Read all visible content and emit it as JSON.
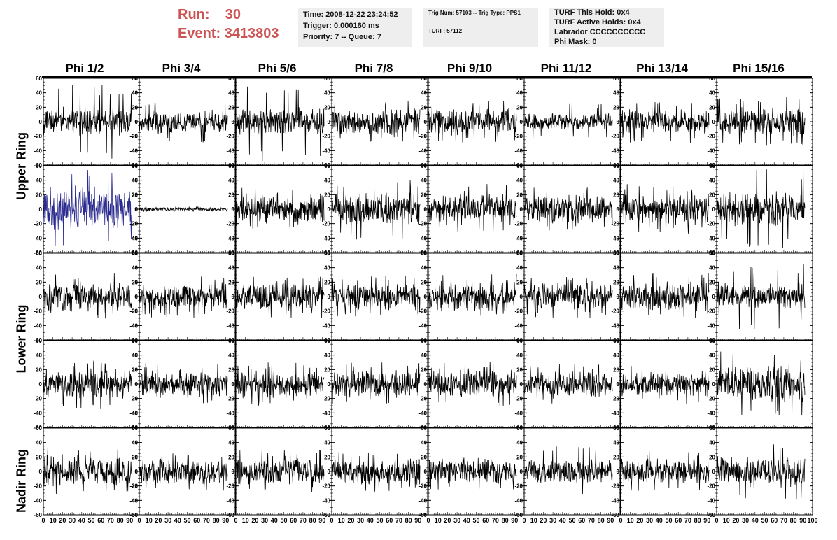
{
  "header": {
    "run_label": "Run:",
    "run_value": "30",
    "event_label": "Event:",
    "event_value": "3413803"
  },
  "time_box": {
    "time": "Time: 2008-12-22 23:24:52",
    "trigger": "Trigger: 0.000160 ms",
    "priority": "Priority: 7 -- Queue: 7"
  },
  "trig_box": {
    "trig": "Trig Num: 57103 -- Trig Type: PPS1",
    "turf": "TURF: 57112"
  },
  "turf_box": {
    "this_hold": "TURF This Hold: 0x4",
    "active_holds": "TURF Active Holds: 0x4",
    "labrador": "Labrador CCCCCCCCCC",
    "phi_mask": "Phi Mask: 0"
  },
  "columns": [
    "Phi 1/2",
    "Phi 3/4",
    "Phi 5/6",
    "Phi 7/8",
    "Phi 9/10",
    "Phi 11/12",
    "Phi 13/14",
    "Phi 15/16"
  ],
  "rings": [
    "Upper Ring",
    "Lower Ring",
    "Nadir Ring"
  ],
  "colors": {
    "trace": "#000000",
    "highlight_trace": "#2a2a8f",
    "title_red": "#cc5454",
    "box_bg": "#eeeeee"
  },
  "chart_data": {
    "type": "line",
    "description_rows": 5,
    "description_cols": 8,
    "xlim": [
      0,
      100
    ],
    "ylim": [
      -60,
      60
    ],
    "yticks": [
      -60,
      -40,
      -20,
      0,
      20,
      40,
      60
    ],
    "xticks": [
      0,
      10,
      20,
      30,
      40,
      50,
      60,
      70,
      80,
      90,
      100
    ],
    "xtick_labels": [
      "0",
      "10",
      "20",
      "30",
      "40",
      "50",
      "60",
      "70",
      "80",
      "90",
      "100"
    ],
    "ytick_labels": [
      "-60",
      "-40",
      "-20",
      "0",
      "20",
      "40",
      "60"
    ],
    "panels": [
      {
        "row": 0,
        "col": 0,
        "amplitude": 14,
        "max_spike": 52,
        "seed": 11
      },
      {
        "row": 0,
        "col": 1,
        "amplitude": 11,
        "max_spike": 30,
        "seed": 12
      },
      {
        "row": 0,
        "col": 2,
        "amplitude": 13,
        "max_spike": 55,
        "seed": 13
      },
      {
        "row": 0,
        "col": 3,
        "amplitude": 12,
        "max_spike": 30,
        "seed": 14
      },
      {
        "row": 0,
        "col": 4,
        "amplitude": 13,
        "max_spike": 30,
        "seed": 15
      },
      {
        "row": 0,
        "col": 5,
        "amplitude": 8,
        "max_spike": 26,
        "seed": 16
      },
      {
        "row": 0,
        "col": 6,
        "amplitude": 12,
        "max_spike": 30,
        "seed": 17
      },
      {
        "row": 0,
        "col": 7,
        "amplitude": 13,
        "max_spike": 35,
        "seed": 18
      },
      {
        "row": 1,
        "col": 0,
        "amplitude": 22,
        "max_spike": 58,
        "seed": 21,
        "highlight": true
      },
      {
        "row": 1,
        "col": 1,
        "amplitude": 2,
        "max_spike": 4,
        "seed": 22
      },
      {
        "row": 1,
        "col": 2,
        "amplitude": 13,
        "max_spike": 30,
        "seed": 23
      },
      {
        "row": 1,
        "col": 3,
        "amplitude": 15,
        "max_spike": 42,
        "seed": 24
      },
      {
        "row": 1,
        "col": 4,
        "amplitude": 15,
        "max_spike": 35,
        "seed": 25
      },
      {
        "row": 1,
        "col": 5,
        "amplitude": 14,
        "max_spike": 32,
        "seed": 26
      },
      {
        "row": 1,
        "col": 6,
        "amplitude": 15,
        "max_spike": 35,
        "seed": 27
      },
      {
        "row": 1,
        "col": 7,
        "amplitude": 16,
        "max_spike": 55,
        "seed": 28
      },
      {
        "row": 2,
        "col": 0,
        "amplitude": 14,
        "max_spike": 32,
        "seed": 31
      },
      {
        "row": 2,
        "col": 1,
        "amplitude": 13,
        "max_spike": 30,
        "seed": 32
      },
      {
        "row": 2,
        "col": 2,
        "amplitude": 13,
        "max_spike": 30,
        "seed": 33
      },
      {
        "row": 2,
        "col": 3,
        "amplitude": 13,
        "max_spike": 30,
        "seed": 34
      },
      {
        "row": 2,
        "col": 4,
        "amplitude": 14,
        "max_spike": 32,
        "seed": 35
      },
      {
        "row": 2,
        "col": 5,
        "amplitude": 13,
        "max_spike": 30,
        "seed": 36
      },
      {
        "row": 2,
        "col": 6,
        "amplitude": 14,
        "max_spike": 32,
        "seed": 37
      },
      {
        "row": 2,
        "col": 7,
        "amplitude": 13,
        "max_spike": 45,
        "seed": 38
      },
      {
        "row": 3,
        "col": 0,
        "amplitude": 14,
        "max_spike": 35,
        "seed": 41
      },
      {
        "row": 3,
        "col": 1,
        "amplitude": 13,
        "max_spike": 30,
        "seed": 42
      },
      {
        "row": 3,
        "col": 2,
        "amplitude": 13,
        "max_spike": 30,
        "seed": 43
      },
      {
        "row": 3,
        "col": 3,
        "amplitude": 13,
        "max_spike": 30,
        "seed": 44
      },
      {
        "row": 3,
        "col": 4,
        "amplitude": 14,
        "max_spike": 32,
        "seed": 45
      },
      {
        "row": 3,
        "col": 5,
        "amplitude": 12,
        "max_spike": 28,
        "seed": 46
      },
      {
        "row": 3,
        "col": 6,
        "amplitude": 12,
        "max_spike": 28,
        "seed": 47
      },
      {
        "row": 3,
        "col": 7,
        "amplitude": 17,
        "max_spike": 45,
        "seed": 48
      },
      {
        "row": 4,
        "col": 0,
        "amplitude": 14,
        "max_spike": 32,
        "seed": 51
      },
      {
        "row": 4,
        "col": 1,
        "amplitude": 12,
        "max_spike": 28,
        "seed": 52
      },
      {
        "row": 4,
        "col": 2,
        "amplitude": 13,
        "max_spike": 30,
        "seed": 53
      },
      {
        "row": 4,
        "col": 3,
        "amplitude": 12,
        "max_spike": 28,
        "seed": 54
      },
      {
        "row": 4,
        "col": 4,
        "amplitude": 12,
        "max_spike": 28,
        "seed": 55
      },
      {
        "row": 4,
        "col": 5,
        "amplitude": 11,
        "max_spike": 36,
        "seed": 56
      },
      {
        "row": 4,
        "col": 6,
        "amplitude": 12,
        "max_spike": 28,
        "seed": 57
      },
      {
        "row": 4,
        "col": 7,
        "amplitude": 15,
        "max_spike": 40,
        "seed": 58
      }
    ]
  }
}
